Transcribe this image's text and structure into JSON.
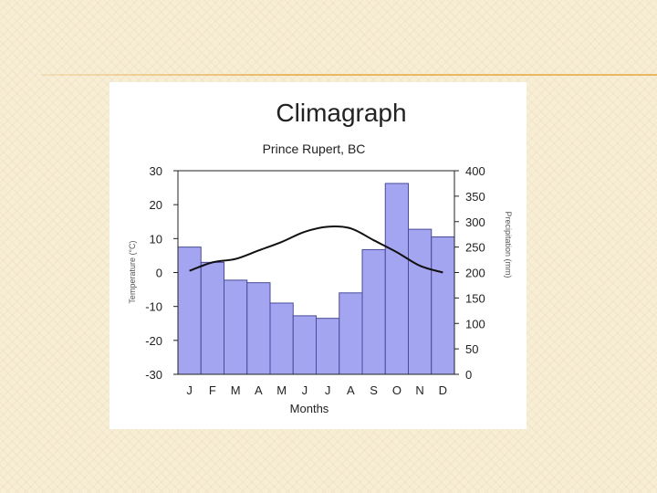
{
  "chart_data": {
    "type": "bar+line",
    "title": "Climagraph",
    "subtitle": "Prince Rupert, BC",
    "categories": [
      "J",
      "F",
      "M",
      "A",
      "M",
      "J",
      "J",
      "A",
      "S",
      "O",
      "N",
      "D"
    ],
    "xlabel": "Months",
    "ylabel_left": "Temperature (°C)",
    "ylabel_right": "Precipitation (mm)",
    "ylim_left": [
      -30,
      30
    ],
    "ylim_right": [
      0,
      400
    ],
    "yticks_left": [
      30,
      20,
      10,
      0,
      -10,
      -20,
      -30
    ],
    "yticks_right": [
      400,
      350,
      300,
      250,
      200,
      150,
      100,
      50,
      0
    ],
    "grid": false,
    "series": [
      {
        "name": "Precipitation (mm)",
        "kind": "bar",
        "axis": "right",
        "color": "#a3a5f0",
        "values": [
          250,
          220,
          185,
          180,
          140,
          115,
          110,
          160,
          245,
          375,
          285,
          270
        ]
      },
      {
        "name": "Temperature (°C)",
        "kind": "line",
        "axis": "left",
        "color": "#111111",
        "values": [
          0.5,
          3,
          4,
          6.5,
          9,
          12,
          13.5,
          13,
          9.5,
          6,
          2,
          0
        ]
      }
    ]
  }
}
